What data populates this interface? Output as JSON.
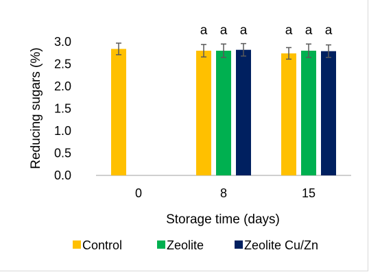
{
  "chart_data": {
    "type": "bar",
    "categories": [
      "0",
      "8",
      "15"
    ],
    "series": [
      {
        "name": "Control",
        "color": "#FFC000",
        "values": [
          2.84,
          2.8,
          2.74
        ],
        "errors": [
          0.13,
          0.14,
          0.13
        ],
        "letters": [
          "",
          "a",
          "a"
        ]
      },
      {
        "name": "Zeolite",
        "color": "#00B050",
        "values": [
          null,
          2.8,
          2.8
        ],
        "errors": [
          null,
          0.15,
          0.15
        ],
        "letters": [
          "",
          "a",
          "a"
        ]
      },
      {
        "name": "Zeolite Cu/Zn",
        "color": "#002060",
        "values": [
          null,
          2.82,
          2.79
        ],
        "errors": [
          null,
          0.14,
          0.14
        ],
        "letters": [
          "",
          "a",
          "a"
        ]
      }
    ],
    "xlabel": "Storage time (days)",
    "ylabel": "Reducing sugars (%)",
    "ylim": [
      0,
      3.0
    ],
    "yticks": [
      "0.0",
      "0.5",
      "1.0",
      "1.5",
      "2.0",
      "2.5",
      "3.0"
    ],
    "grid": false,
    "legend_position": "bottom"
  }
}
